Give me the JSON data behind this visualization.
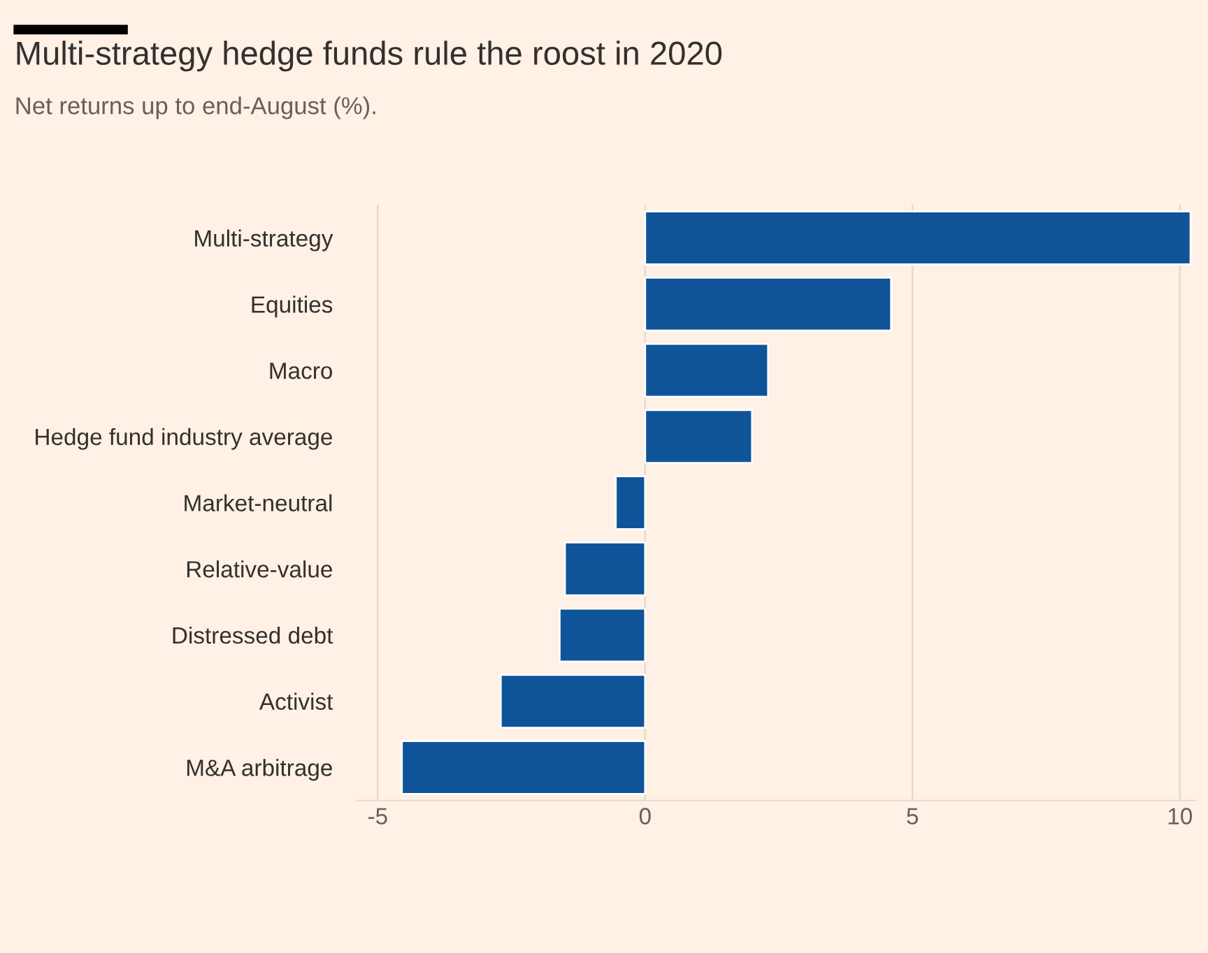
{
  "chart_data": {
    "type": "bar",
    "orientation": "horizontal",
    "title": "Multi-strategy hedge funds rule the roost in 2020",
    "subtitle": "Net returns up to end-August (%).",
    "categories": [
      "Multi-strategy",
      "Equities",
      "Macro",
      "Hedge fund industry average",
      "Market-neutral",
      "Relative-value",
      "Distressed debt",
      "Activist",
      "M&A arbitrage"
    ],
    "values": [
      10.2,
      4.6,
      2.3,
      2.0,
      -0.55,
      -1.5,
      -1.6,
      -2.7,
      -4.55
    ],
    "color": "#0f5499",
    "xlim": [
      -5.4,
      10.3
    ],
    "xticks": [
      -5,
      0,
      5,
      10
    ],
    "grid": "x"
  }
}
